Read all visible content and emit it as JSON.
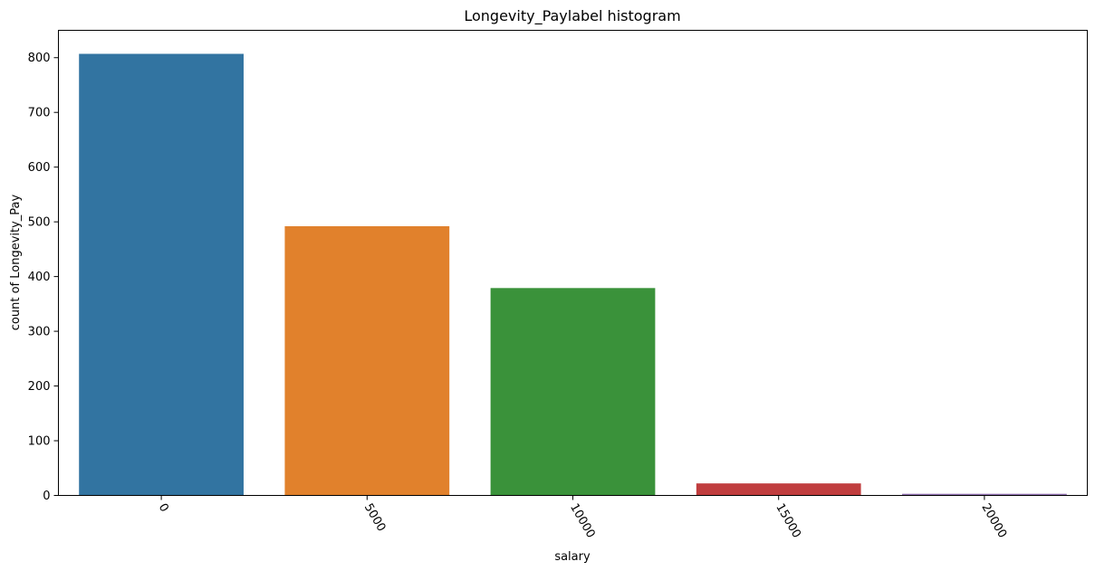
{
  "chart_data": {
    "type": "bar",
    "title": "Longevity_Paylabel histogram",
    "xlabel": "salary",
    "ylabel": "count of Longevity_Pay",
    "categories": [
      "0",
      "5000",
      "10000",
      "15000",
      "20000"
    ],
    "values": [
      807,
      492,
      379,
      22,
      3
    ],
    "colors": [
      "#3274a1",
      "#e1812c",
      "#3a923a",
      "#c03d3e",
      "#9372b2"
    ],
    "ylim": [
      0,
      850
    ],
    "yticks": [
      0,
      100,
      200,
      300,
      400,
      500,
      600,
      700,
      800
    ],
    "ytick_labels": [
      "0",
      "100",
      "200",
      "300",
      "400",
      "500",
      "600",
      "700",
      "800"
    ],
    "xtick_rotation": 60,
    "grid": false,
    "legend": "none"
  }
}
